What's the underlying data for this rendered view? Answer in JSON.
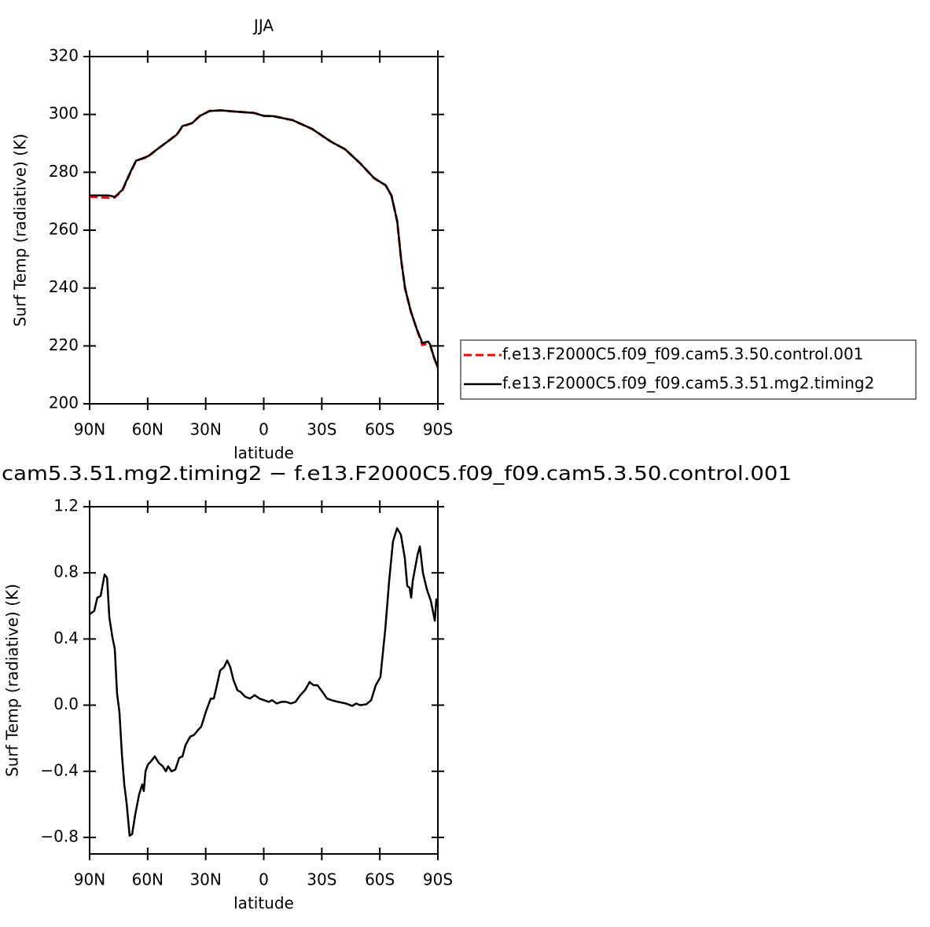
{
  "chart_data": [
    {
      "type": "line",
      "title": "JJA",
      "xlabel": "latitude",
      "ylabel": "Surf Temp (radiative) (K)",
      "xlim": [
        90,
        -90
      ],
      "ylim": [
        200,
        320
      ],
      "xticks": [
        {
          "value": 90,
          "label": "90N"
        },
        {
          "value": 60,
          "label": "60N"
        },
        {
          "value": 30,
          "label": "30N"
        },
        0,
        {
          "value": -30,
          "label": "30S"
        },
        {
          "value": -60,
          "label": "60S"
        },
        {
          "value": -90,
          "label": "90S"
        }
      ],
      "yticks": [
        200,
        220,
        240,
        260,
        280,
        300,
        320
      ],
      "x": [
        90,
        80,
        77,
        73,
        69,
        66,
        60,
        55,
        50,
        45,
        42,
        37,
        33,
        28,
        22,
        15,
        5,
        0,
        -5,
        -15,
        -25,
        -35,
        -42,
        -50,
        -57,
        -63,
        -66,
        -69,
        -71,
        -73,
        -76,
        -79,
        -82,
        -85,
        -86,
        -88,
        -90
      ],
      "series": [
        {
          "name": "f.e13.F2000C5.f09_f09.cam5.3.50.control.001",
          "color": "#ff0000",
          "dash": true,
          "values": [
            271.5,
            271.2,
            271.3,
            273.8,
            279.8,
            284,
            285.3,
            288,
            290.5,
            293,
            295.8,
            297,
            299.5,
            301.2,
            301.4,
            301,
            300.5,
            299.5,
            299.4,
            298,
            295,
            290.5,
            288,
            283,
            278,
            275.5,
            272,
            263,
            250,
            240,
            232,
            226,
            220.3,
            220.8,
            220.2,
            216,
            212.4
          ]
        },
        {
          "name": "f.e13.F2000C5.f09_f09.cam5.3.51.mg2.timing2",
          "color": "#000000",
          "dash": false,
          "values": [
            272,
            272,
            271.5,
            274,
            280,
            284,
            285.5,
            288,
            290.5,
            293,
            296,
            297,
            299.5,
            301.2,
            301.4,
            301,
            300.5,
            299.5,
            299.4,
            298,
            295,
            290.5,
            288,
            283,
            278,
            275.5,
            272,
            263,
            250,
            240,
            232,
            226,
            221,
            221.5,
            220.5,
            216,
            212.5
          ]
        }
      ]
    },
    {
      "type": "line",
      "title": "cam5.3.51.mg2.timing2 − f.e13.F2000C5.f09_f09.cam5.3.50.control.001",
      "xlabel": "latitude",
      "ylabel": "Surf Temp (radiative) (K)",
      "xlim": [
        90,
        -90
      ],
      "ylim": [
        -0.9,
        1.2
      ],
      "xticks": [
        {
          "value": 90,
          "label": "90N"
        },
        {
          "value": 60,
          "label": "60N"
        },
        {
          "value": 30,
          "label": "30N"
        },
        0,
        {
          "value": -30,
          "label": "30S"
        },
        {
          "value": -60,
          "label": "60S"
        },
        {
          "value": -90,
          "label": "90S"
        }
      ],
      "yticks": [
        {
          "value": -0.8,
          "label": "−0.8"
        },
        {
          "value": -0.4,
          "label": "−0.4"
        },
        {
          "value": 0,
          "label": "0.0"
        },
        0.4,
        0.8,
        1.2
      ],
      "x": [
        90,
        87.6,
        86,
        84.3,
        82.3,
        81,
        79.8,
        78.2,
        77,
        75.8,
        74.6,
        73.3,
        72.1,
        70.9,
        69.3,
        68,
        66.4,
        64.4,
        62.8,
        62,
        61.1,
        59.9,
        58.3,
        56.3,
        54.2,
        52.2,
        50.6,
        49.4,
        47.7,
        45.7,
        43.7,
        42,
        40.4,
        38,
        36,
        33.9,
        32.3,
        29.9,
        27.4,
        25.8,
        24.2,
        22.5,
        20.5,
        18.9,
        17.3,
        15.6,
        13.6,
        12,
        9.5,
        7.1,
        4.7,
        2.2,
        -0.2,
        -2.6,
        -4.3,
        -6.7,
        -9.1,
        -11.6,
        -14,
        -16.4,
        -18.9,
        -21.3,
        -23.7,
        -25.8,
        -27.8,
        -30.3,
        -32.7,
        -35.1,
        -38.4,
        -42.5,
        -45.7,
        -47.8,
        -49.8,
        -53,
        -55.5,
        -57.9,
        -60.3,
        -62.8,
        -64.8,
        -66.8,
        -68.9,
        -70.9,
        -72.9,
        -74.2,
        -75.4,
        -76.2,
        -77,
        -79.5,
        -80.7,
        -82.3,
        -84.3,
        -86.4,
        -88.4,
        -89.2,
        -90
      ],
      "series": [
        {
          "color": "#000000",
          "dash": false,
          "values": [
            0.55,
            0.57,
            0.65,
            0.66,
            0.79,
            0.77,
            0.53,
            0.41,
            0.34,
            0.07,
            -0.04,
            -0.3,
            -0.48,
            -0.59,
            -0.79,
            -0.78,
            -0.66,
            -0.54,
            -0.48,
            -0.52,
            -0.4,
            -0.36,
            -0.34,
            -0.31,
            -0.35,
            -0.37,
            -0.4,
            -0.37,
            -0.4,
            -0.39,
            -0.32,
            -0.31,
            -0.24,
            -0.19,
            -0.18,
            -0.15,
            -0.13,
            -0.04,
            0.04,
            0.04,
            0.12,
            0.21,
            0.23,
            0.27,
            0.23,
            0.15,
            0.09,
            0.08,
            0.05,
            0.04,
            0.06,
            0.04,
            0.03,
            0.02,
            0.03,
            0.01,
            0.02,
            0.02,
            0.01,
            0.02,
            0.06,
            0.09,
            0.14,
            0.12,
            0.12,
            0.08,
            0.04,
            0.03,
            0.02,
            0.01,
            -0.005,
            0.01,
            0,
            0.005,
            0.03,
            0.12,
            0.17,
            0.46,
            0.75,
            0.99,
            1.07,
            1.03,
            0.89,
            0.72,
            0.71,
            0.65,
            0.75,
            0.91,
            0.96,
            0.8,
            0.7,
            0.63,
            0.51,
            0.64,
            0.6
          ]
        }
      ]
    }
  ]
}
